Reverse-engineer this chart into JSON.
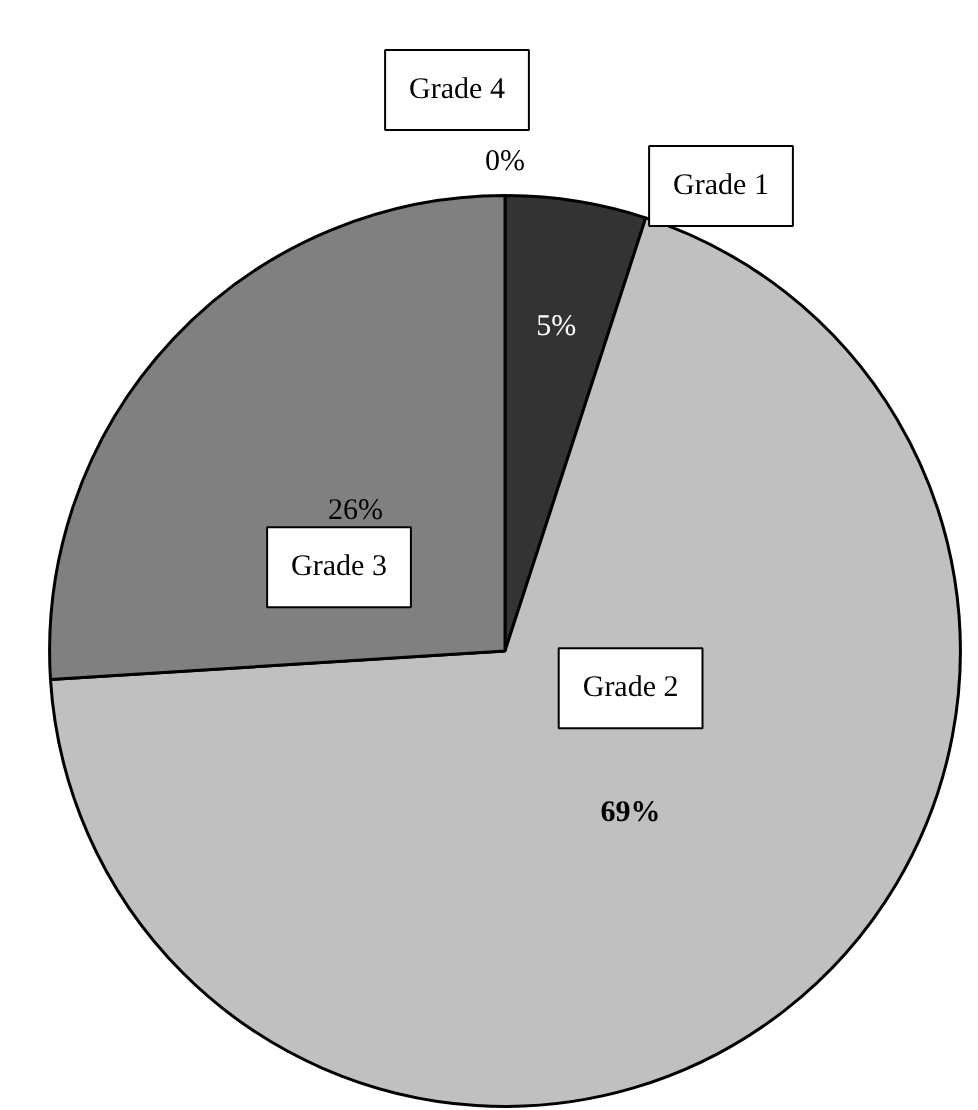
{
  "chart_data": {
    "type": "pie",
    "categories": [
      "Grade 1",
      "Grade 2",
      "Grade 3",
      "Grade 4"
    ],
    "values": [
      5,
      69,
      26,
      0
    ],
    "colors": [
      "#333333",
      "#c0c0c0",
      "#808080",
      "#ffffff"
    ],
    "value_labels": [
      "5%",
      "69%",
      "26%",
      "0%"
    ]
  }
}
